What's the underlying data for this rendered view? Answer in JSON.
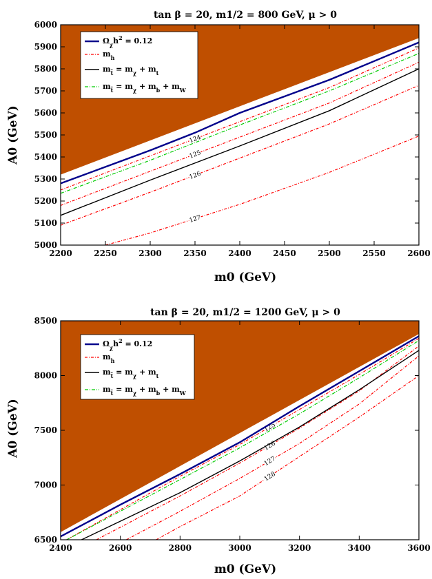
{
  "chart_data": [
    {
      "type": "line",
      "title": "tan β = 20, m1/2 = 800 GeV, μ > 0",
      "xlabel": "m0 (GeV)",
      "ylabel": "A0 (GeV)",
      "xlim": [
        2200,
        2600
      ],
      "ylim": [
        5000,
        6000
      ],
      "xticks": [
        "2200",
        "2250",
        "2300",
        "2350",
        "2400",
        "2450",
        "2500",
        "2550",
        "2600"
      ],
      "yticks": [
        "5000",
        "5100",
        "5200",
        "5300",
        "5400",
        "5500",
        "5600",
        "5700",
        "5800",
        "5900",
        "6000"
      ],
      "colors": {
        "excluded": "#bf4f00",
        "relic": "#00008b",
        "mh": "#ff0000",
        "stop_top": "#000000",
        "stop_bw": "#00cc00"
      },
      "legend": {
        "placement": "top-left",
        "entries": [
          "Ωχh² = 0.12",
          "mh",
          "mt̃ = mχ + mt",
          "mt̃ = mχ + mb + mW"
        ]
      },
      "excluded_boundary": {
        "x": [
          2200,
          2600
        ],
        "y": [
          5320,
          5940
        ]
      },
      "series": [
        {
          "key": "relic",
          "x": [
            2200,
            2250,
            2300,
            2350,
            2400,
            2450,
            2500,
            2550,
            2600
          ],
          "y": [
            5280,
            5355,
            5430,
            5510,
            5600,
            5675,
            5750,
            5835,
            5920
          ]
        },
        {
          "key": "stop_top",
          "x": [
            2200,
            2300,
            2400,
            2500,
            2600
          ],
          "y": [
            5135,
            5295,
            5450,
            5610,
            5800
          ]
        },
        {
          "key": "stop_bw",
          "x": [
            2200,
            2300,
            2400,
            2500,
            2600
          ],
          "y": [
            5235,
            5385,
            5545,
            5700,
            5870
          ]
        }
      ],
      "contours": [
        {
          "label": "124",
          "x": [
            2200,
            2300,
            2400,
            2500,
            2600
          ],
          "y": [
            5250,
            5405,
            5560,
            5715,
            5895
          ]
        },
        {
          "label": "125",
          "x": [
            2200,
            2300,
            2400,
            2500,
            2600
          ],
          "y": [
            5180,
            5335,
            5490,
            5645,
            5830
          ]
        },
        {
          "label": "126",
          "x": [
            2200,
            2300,
            2400,
            2500,
            2600
          ],
          "y": [
            5090,
            5240,
            5395,
            5550,
            5725
          ]
        },
        {
          "label": "127",
          "x": [
            2250,
            2300,
            2400,
            2500,
            2600
          ],
          "y": [
            5000,
            5055,
            5185,
            5330,
            5495
          ]
        }
      ]
    },
    {
      "type": "line",
      "title": "tan β = 20, m1/2 = 1200 GeV, μ > 0",
      "xlabel": "m0 (GeV)",
      "ylabel": "A0 (GeV)",
      "xlim": [
        2400,
        3600
      ],
      "ylim": [
        6500,
        8500
      ],
      "xticks": [
        "2400",
        "2600",
        "2800",
        "3000",
        "3200",
        "3400",
        "3600"
      ],
      "yticks": [
        "6500",
        "7000",
        "7500",
        "8000",
        "8500"
      ],
      "colors": {
        "excluded": "#bf4f00",
        "relic": "#00008b",
        "mh": "#ff0000",
        "stop_top": "#000000",
        "stop_bw": "#00cc00"
      },
      "legend": {
        "placement": "top-left",
        "entries": [
          "Ωχh² = 0.12",
          "mh",
          "mt̃ = mχ + mt",
          "mt̃ = mχ + mb + mW"
        ]
      },
      "excluded_boundary": {
        "x": [
          2400,
          3600
        ],
        "y": [
          6570,
          8380
        ]
      },
      "series": [
        {
          "key": "relic",
          "x": [
            2400,
            2600,
            2800,
            3000,
            3200,
            3400,
            3600
          ],
          "y": [
            6530,
            6820,
            7100,
            7390,
            7720,
            8040,
            8360
          ]
        },
        {
          "key": "stop_top",
          "x": [
            2470,
            2800,
            3000,
            3200,
            3400,
            3600
          ],
          "y": [
            6500,
            6930,
            7220,
            7530,
            7870,
            8230
          ]
        },
        {
          "key": "stop_bw",
          "x": [
            2420,
            2800,
            3000,
            3200,
            3400,
            3600
          ],
          "y": [
            6500,
            7050,
            7340,
            7650,
            7980,
            8320
          ]
        }
      ],
      "contours": [
        {
          "label": "125",
          "x": [
            2420,
            2800,
            3000,
            3200,
            3400,
            3600
          ],
          "y": [
            6500,
            7080,
            7370,
            7690,
            8010,
            8340
          ]
        },
        {
          "label": "126",
          "x": [
            2520,
            2800,
            3000,
            3200,
            3400,
            3600
          ],
          "y": [
            6500,
            6900,
            7200,
            7520,
            7860,
            8270
          ]
        },
        {
          "label": "127",
          "x": [
            2620,
            2800,
            3000,
            3200,
            3400,
            3600
          ],
          "y": [
            6500,
            6760,
            7060,
            7380,
            7740,
            8180
          ]
        },
        {
          "label": "128",
          "x": [
            2720,
            2800,
            3000,
            3200,
            3400,
            3600
          ],
          "y": [
            6500,
            6620,
            6900,
            7260,
            7620,
            8000
          ]
        }
      ]
    }
  ]
}
